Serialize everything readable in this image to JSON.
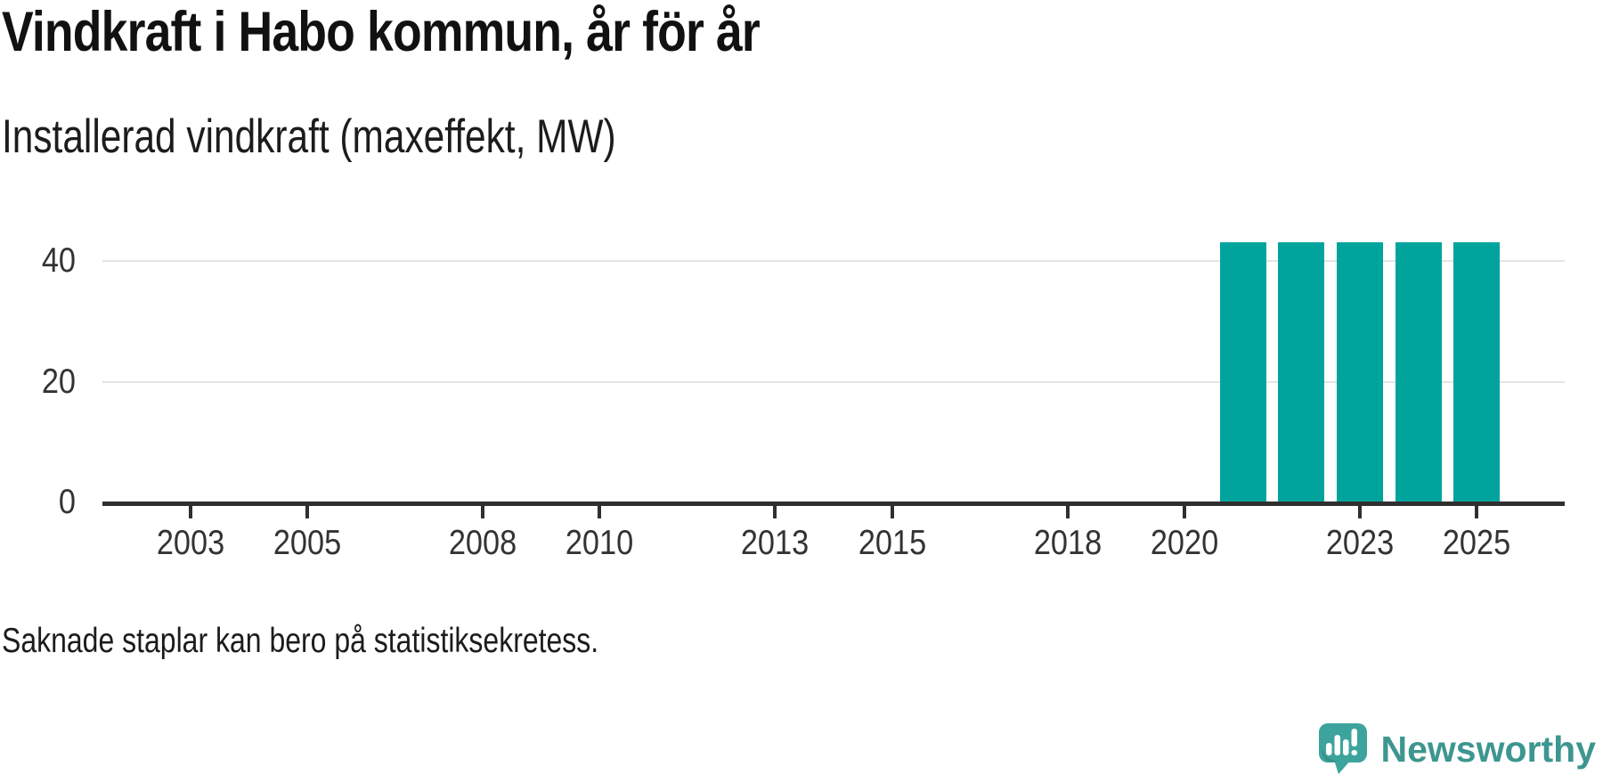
{
  "header": {
    "title": "Vindkraft i Habo kommun, år för år",
    "subtitle": "Installerad vindkraft (maxeffekt, MW)"
  },
  "footer": {
    "footnote": "Saknade staplar kan bero på statistiksekretess."
  },
  "branding": {
    "wordmark": "Newsworthy",
    "logo_icon": "speech-bubble-bar-chart-icon",
    "wordmark_color": "#3d968f",
    "bubble_color": "#3ca49c"
  },
  "colors": {
    "bar": "#00a49d",
    "axis": "#2f2f2f",
    "gridline": "#e4e4e4",
    "tick_label": "#333333",
    "text": "#1c1c1c"
  },
  "chart_data": {
    "type": "bar",
    "title": "Vindkraft i Habo kommun, år för år",
    "subtitle": "Installerad vindkraft (maxeffekt, MW)",
    "unit": "MW",
    "x": [
      2021,
      2022,
      2023,
      2024,
      2025
    ],
    "values": [
      43,
      43,
      43,
      43,
      43
    ],
    "x_domain": [
      2001.5,
      2026.5
    ],
    "x_ticks": [
      2003,
      2005,
      2008,
      2010,
      2013,
      2015,
      2018,
      2020,
      2023,
      2025
    ],
    "y_ticks": [
      0,
      20,
      40
    ],
    "y_gridlines": [
      20,
      40
    ],
    "ylim": [
      0,
      45
    ],
    "grid": "horizontal",
    "legend": "none",
    "note": "Bars only for 2021–2025; earlier years have no bars (statistiksekretess)."
  }
}
